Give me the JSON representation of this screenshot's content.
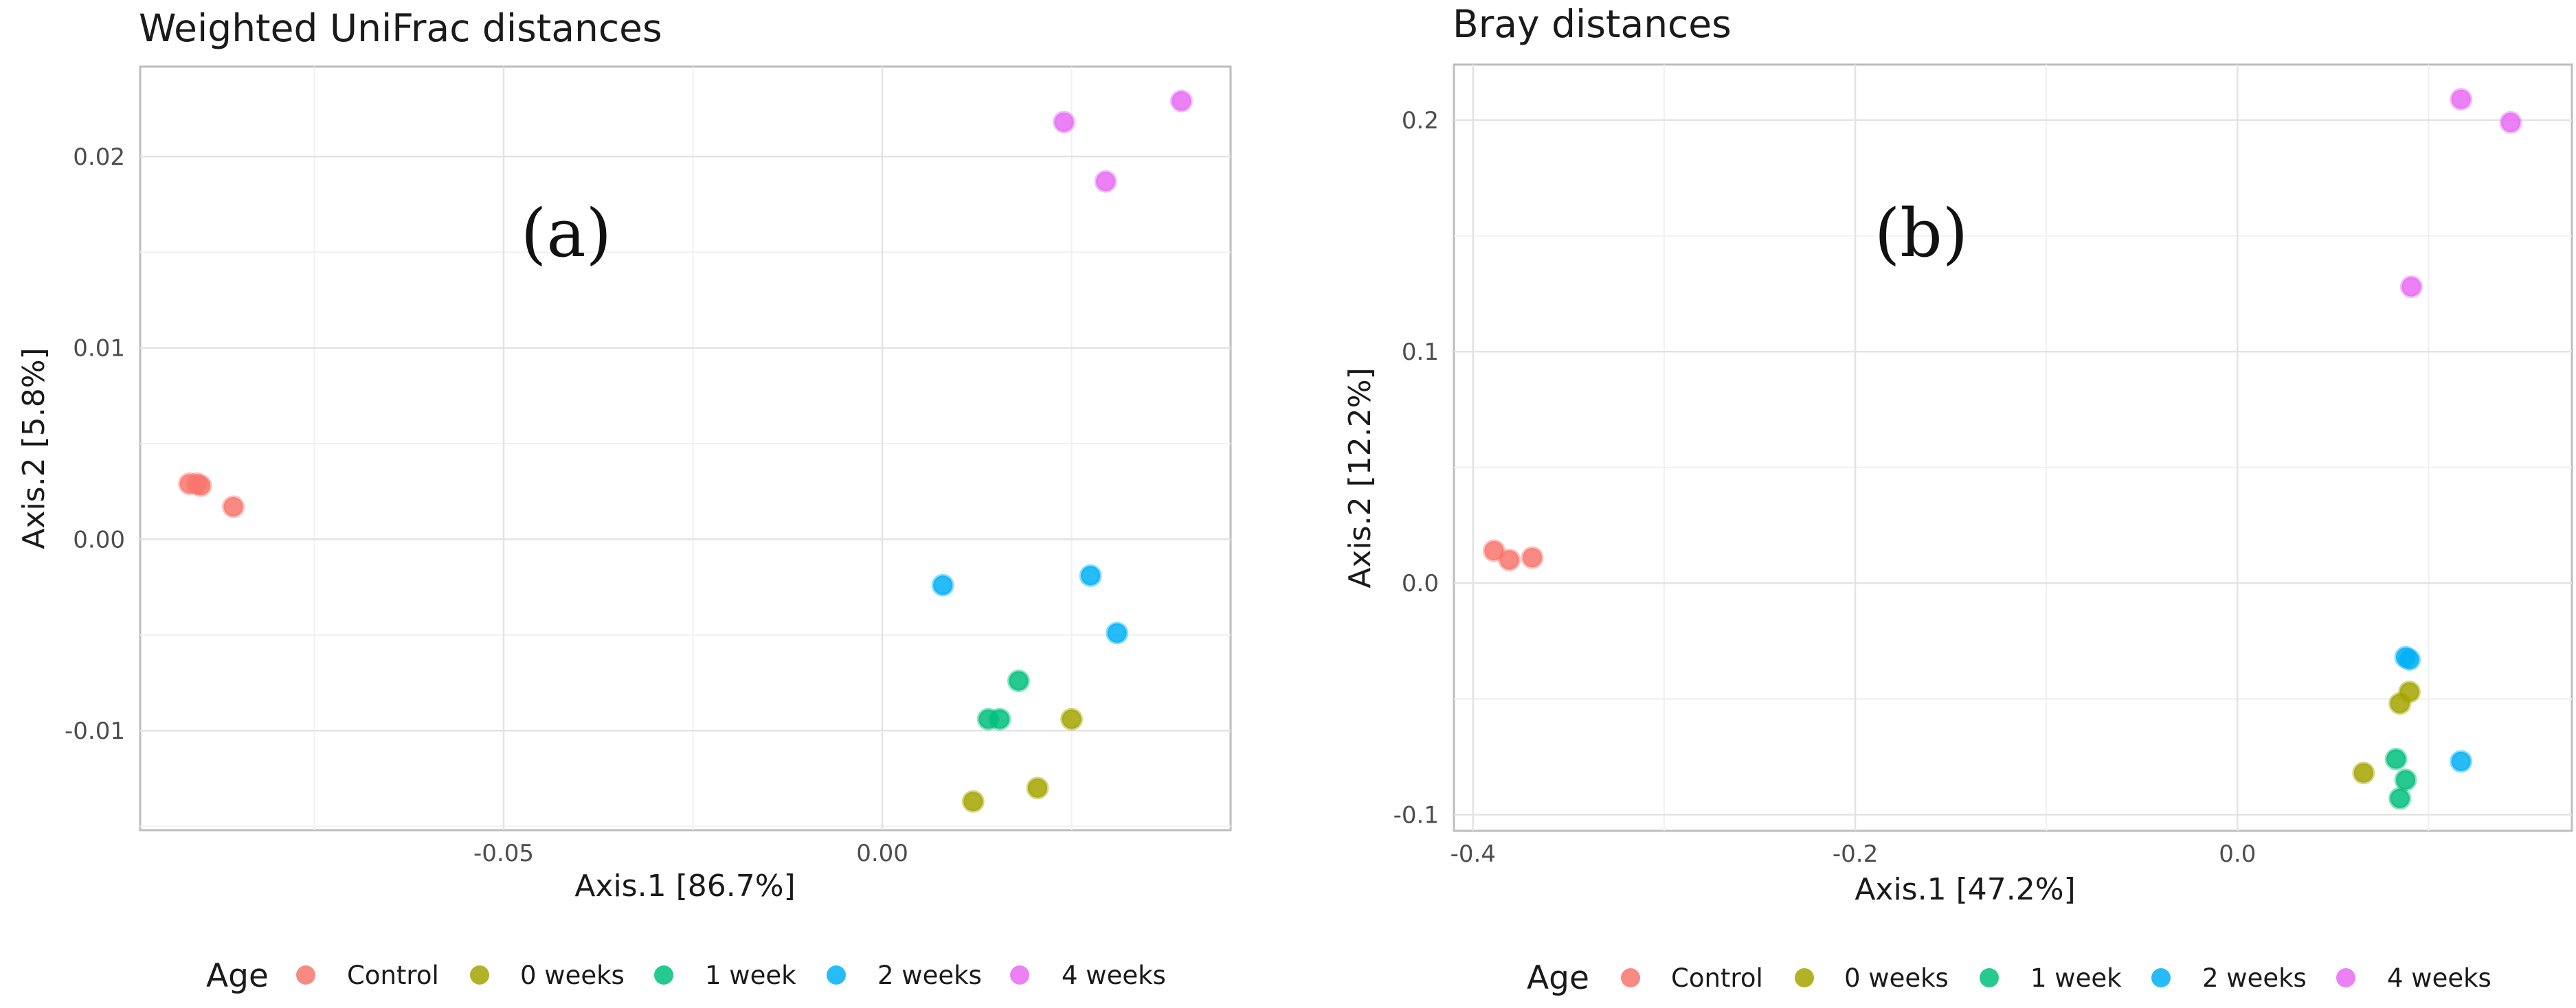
{
  "group_colors": {
    "Control": "#f8766d",
    "0 weeks": "#a3a500",
    "1 week": "#00bf7d",
    "2 weeks": "#00b0f6",
    "4 weeks": "#e76bf3"
  },
  "chart_data": [
    {
      "type": "scatter",
      "title": "Weighted UniFrac distances",
      "panel_label": "(a)",
      "xlabel": "Axis.1   [86.7%]",
      "ylabel": "Axis.2   [5.8%]",
      "xlim": [
        -0.098,
        0.046
      ],
      "ylim": [
        -0.0152,
        0.0247
      ],
      "xticks": [
        -0.05,
        0.0
      ],
      "xtick_labels": [
        "-0.05",
        "0.00"
      ],
      "yticks": [
        -0.01,
        0.0,
        0.01,
        0.02
      ],
      "ytick_labels": [
        "-0.01",
        "0.00",
        "0.01",
        "0.02"
      ],
      "grid": true,
      "legend_title": "Age",
      "legend_position": "bottom",
      "legend_labels": [
        "Control",
        "0 weeks",
        "1 week",
        "2 weeks",
        "4 weeks"
      ],
      "series": [
        {
          "name": "Control",
          "points": [
            [
              -0.0915,
              0.0029
            ],
            [
              -0.0905,
              0.0029
            ],
            [
              -0.09,
              0.0028
            ],
            [
              -0.0857,
              0.0017
            ]
          ]
        },
        {
          "name": "0 weeks",
          "points": [
            [
              0.025,
              -0.0094
            ],
            [
              0.0205,
              -0.013
            ],
            [
              0.012,
              -0.0137
            ]
          ]
        },
        {
          "name": "1 week",
          "points": [
            [
              0.018,
              -0.0074
            ],
            [
              0.014,
              -0.0094
            ],
            [
              0.0155,
              -0.0094
            ]
          ]
        },
        {
          "name": "2 weeks",
          "points": [
            [
              0.008,
              -0.0024
            ],
            [
              0.0275,
              -0.0019
            ],
            [
              0.031,
              -0.0049
            ]
          ]
        },
        {
          "name": "4 weeks",
          "points": [
            [
              0.024,
              0.0218
            ],
            [
              0.0295,
              0.0187
            ],
            [
              0.0395,
              0.0229
            ]
          ]
        }
      ]
    },
    {
      "type": "scatter",
      "title": "Bray distances",
      "panel_label": "(b)",
      "xlabel": "Axis.1   [47.2%]",
      "ylabel": "Axis.2   [12.2%]",
      "xlim": [
        -0.41,
        0.175
      ],
      "ylim": [
        -0.107,
        0.224
      ],
      "xticks": [
        -0.4,
        -0.2,
        0.0
      ],
      "xtick_labels": [
        "-0.4",
        "-0.2",
        "0.0"
      ],
      "yticks": [
        -0.1,
        0.0,
        0.1,
        0.2
      ],
      "ytick_labels": [
        "-0.1",
        "0.0",
        "0.1",
        "0.2"
      ],
      "grid": true,
      "legend_title": "Age",
      "legend_position": "bottom",
      "legend_labels": [
        "Control",
        "0 weeks",
        "1 week",
        "2 weeks",
        "4 weeks"
      ],
      "series": [
        {
          "name": "Control",
          "points": [
            [
              -0.389,
              0.014
            ],
            [
              -0.381,
              0.01
            ],
            [
              -0.369,
              0.011
            ]
          ]
        },
        {
          "name": "0 weeks",
          "points": [
            [
              0.066,
              -0.082
            ],
            [
              0.09,
              -0.047
            ],
            [
              0.085,
              -0.052
            ]
          ]
        },
        {
          "name": "1 week",
          "points": [
            [
              0.083,
              -0.076
            ],
            [
              0.088,
              -0.085
            ],
            [
              0.085,
              -0.093
            ]
          ]
        },
        {
          "name": "2 weeks",
          "points": [
            [
              0.088,
              -0.032
            ],
            [
              0.09,
              -0.033
            ],
            [
              0.117,
              -0.077
            ]
          ]
        },
        {
          "name": "4 weeks",
          "points": [
            [
              0.117,
              0.209
            ],
            [
              0.143,
              0.199
            ],
            [
              0.091,
              0.128
            ]
          ]
        }
      ]
    }
  ]
}
